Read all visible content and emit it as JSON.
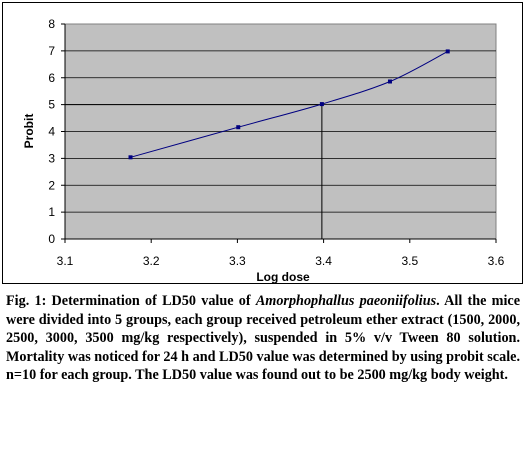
{
  "chart_data": {
    "type": "line",
    "title": "",
    "xlabel": "Log dose",
    "ylabel": "Probit",
    "xlim": [
      3.1,
      3.6
    ],
    "ylim": [
      0,
      8
    ],
    "x_ticks": [
      "3.1",
      "3.2",
      "3.3",
      "3.4",
      "3.5",
      "3.6"
    ],
    "y_ticks": [
      "0",
      "1",
      "2",
      "3",
      "4",
      "5",
      "6",
      "7",
      "8"
    ],
    "grid": true,
    "legend": "none",
    "series": [
      {
        "x": [
          3.176,
          3.301,
          3.398,
          3.477,
          3.544
        ],
        "y": [
          3.04,
          4.16,
          5.02,
          5.86,
          6.98
        ]
      }
    ],
    "reference_lines": {
      "probit": 5,
      "log_dose": 3.398
    },
    "colors": {
      "plot_background": "#c0c0c0",
      "series": "#000080",
      "reference": "#000000"
    }
  },
  "caption": {
    "prefix": "Fig. 1: Determination of LD50 value of ",
    "species": "Amorphophallus paeoniifolius",
    "suffix": ". All the mice were divided into 5 groups, each group received petroleum ether extract (1500, 2000, 2500, 3000, 3500 mg/kg respectively), suspended in 5% v/v Tween 80 solution. Mortality was noticed for 24 h and LD50 value was determined by using probit scale. n=10 for each group. The LD50 value was found out to be 2500 mg/kg body weight."
  }
}
